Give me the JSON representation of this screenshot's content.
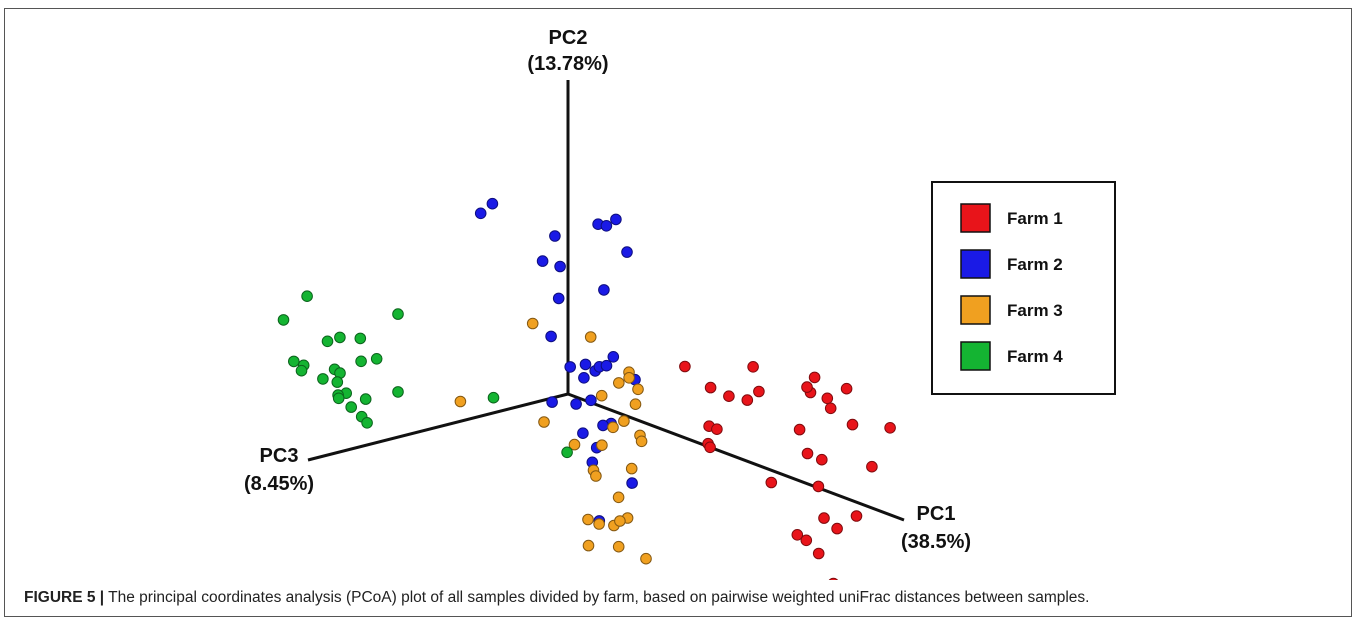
{
  "caption": {
    "label": "FIGURE 5 |",
    "text": " The principal coordinates analysis (PCoA) plot of all samples divided by farm, based on pairwise weighted uniFrac distances between samples."
  },
  "chart_data": {
    "type": "scatter",
    "projection": "3d",
    "title": "",
    "axes": [
      {
        "name": "PC1",
        "variance": "(38.5%)"
      },
      {
        "name": "PC2",
        "variance": "(13.78%)"
      },
      {
        "name": "PC3",
        "variance": "(8.45%)"
      }
    ],
    "legend_placement": "right",
    "grid": false,
    "series": [
      {
        "name": "Farm 1",
        "color": "#e8141a",
        "points": [
          [
            6.75,
            3.0,
            0.97
          ],
          [
            7.58,
            2.97,
            1.05
          ],
          [
            8.42,
            4.47,
            0.85
          ],
          [
            5.33,
            3.26,
            0.55
          ],
          [
            6.42,
            1.2,
            0.65
          ],
          [
            6.33,
            0.94,
            0.15
          ],
          [
            5.92,
            0.17,
            0.1
          ],
          [
            6.08,
            0.1,
            0.19
          ],
          [
            7.83,
            3.01,
            -0.15
          ],
          [
            9.83,
            3.68,
            -0.33
          ],
          [
            8.5,
            3.11,
            -1.75
          ],
          [
            9.5,
            4.06,
            -0.93
          ],
          [
            10.67,
            3.79,
            -0.16
          ],
          [
            11.25,
            4.35,
            -0.43
          ],
          [
            9.0,
            1.73,
            -0.78
          ],
          [
            9.42,
            1.65,
            -2.92
          ],
          [
            7.33,
            2.46,
            -0.17
          ],
          [
            10.58,
            3.28,
            -0.44
          ],
          [
            12.42,
            3.0,
            -1.2
          ],
          [
            8.92,
            0.6,
            -1.27
          ],
          [
            10.0,
            0.87,
            -0.69
          ],
          [
            10.33,
            0.26,
            -2.8
          ],
          [
            8.17,
            -0.7,
            -0.36
          ],
          [
            9.5,
            -0.52,
            -1.12
          ],
          [
            9.5,
            -1.9,
            -1.4
          ],
          [
            10.17,
            -2.9,
            -0.33
          ],
          [
            7.83,
            -3.36,
            -2.07
          ],
          [
            8.17,
            -3.47,
            -2.11
          ],
          [
            9.92,
            -2.21,
            -1.55
          ],
          [
            10.08,
            -1.79,
            -2.33
          ],
          [
            10.5,
            -4.1,
            -0.67
          ]
        ]
      },
      {
        "name": "Farm 2",
        "color": "#1a1ae6",
        "points": [
          [
            -0.25,
            8.56,
            3.48
          ],
          [
            -0.83,
            7.92,
            3.37
          ],
          [
            1.42,
            7.65,
            0.2
          ],
          [
            1.08,
            7.45,
            -1.1
          ],
          [
            1.25,
            7.39,
            -0.42
          ],
          [
            2.33,
            6.85,
            3.19
          ],
          [
            2.67,
            5.75,
            3.67
          ],
          [
            2.5,
            6.86,
            0.05
          ],
          [
            -0.08,
            6.67,
            0.56
          ],
          [
            0.75,
            6.27,
            2.17
          ],
          [
            2.17,
            5.32,
            0.81
          ],
          [
            2.92,
            4.4,
            4.35
          ],
          [
            2.0,
            1.93,
            1.04
          ],
          [
            1.75,
            1.9,
            0.53
          ],
          [
            1.33,
            1.34,
            0.8
          ],
          [
            0.42,
            0.09,
            1.3
          ],
          [
            1.92,
            0.7,
            1.9
          ],
          [
            3.17,
            3.06,
            1.54
          ],
          [
            1.17,
            1.51,
            -0.52
          ],
          [
            2.67,
            2.72,
            2.33
          ],
          [
            2.5,
            2.67,
            2.89
          ],
          [
            2.42,
            1.01,
            1.76
          ],
          [
            2.5,
            1.46,
            -0.35
          ],
          [
            2.83,
            0.09,
            1.24
          ],
          [
            2.17,
            -1.18,
            1.17
          ],
          [
            3.58,
            0.45,
            3.55
          ],
          [
            2.5,
            -0.11,
            1.25
          ],
          [
            2.08,
            -1.8,
            1.28
          ],
          [
            2.67,
            -2.71,
            0.0
          ],
          [
            2.42,
            -4.1,
            1.34
          ]
        ]
      },
      {
        "name": "Farm 3",
        "color": "#f0a020",
        "points": [
          [
            3.5,
            2.46,
            1.15
          ],
          [
            3.92,
            2.49,
            1.65
          ],
          [
            2.75,
            1.65,
            0.76
          ],
          [
            -1.08,
            2.63,
            0.47
          ],
          [
            3.0,
            1.34,
            0.1
          ],
          [
            3.92,
            1.32,
            1.33
          ],
          [
            2.25,
            -0.45,
            0.45
          ],
          [
            1.92,
            -0.51,
            -0.49
          ],
          [
            3.0,
            -0.6,
            0.0
          ],
          [
            3.5,
            -0.55,
            0.52
          ],
          [
            -1.0,
            -1.54,
            0.0
          ],
          [
            3.17,
            -1.79,
            0.62
          ],
          [
            -4.25,
            -1.85,
            0.28
          ],
          [
            1.67,
            -2.4,
            0.73
          ],
          [
            2.5,
            -3.27,
            0.47
          ],
          [
            3.5,
            -3.6,
            1.22
          ],
          [
            1.5,
            -4.5,
            0.8
          ],
          [
            1.92,
            -4.54,
            0.75
          ],
          [
            2.33,
            -4.5,
            0.5
          ],
          [
            1.83,
            -4.69,
            -0.4
          ],
          [
            1.17,
            -5.8,
            0.38
          ],
          [
            3.0,
            -5.8,
            -0.3
          ],
          [
            2.67,
            -5.22,
            0.67
          ],
          [
            0.92,
            -1.6,
            0.78
          ],
          [
            2.83,
            -1.94,
            2.0
          ],
          [
            3.17,
            1.56,
            2.12
          ],
          [
            0.58,
            2.5,
            -0.44
          ],
          [
            2.33,
            -1.03,
            1.1
          ]
        ]
      },
      {
        "name": "Farm 4",
        "color": "#14b432",
        "points": [
          [
            -3.25,
            3.07,
            4.6
          ],
          [
            -5.17,
            1.25,
            4.18
          ],
          [
            -4.25,
            -0.8,
            3.4
          ],
          [
            -8.42,
            1.53,
            2.94
          ],
          [
            -6.17,
            0.88,
            4.0
          ],
          [
            -5.42,
            0.13,
            3.84
          ],
          [
            -5.33,
            0.13,
            3.17
          ],
          [
            -7.58,
            -0.79,
            4.12
          ],
          [
            -8.08,
            1.0,
            4.53
          ],
          [
            -6.5,
            -0.6,
            3.87
          ],
          [
            -7.17,
            0.22,
            3.42
          ],
          [
            -6.5,
            -1.72,
            3.29
          ],
          [
            -7.17,
            -1.3,
            3.65
          ],
          [
            -7.0,
            -1.13,
            3.0
          ],
          [
            -6.08,
            -0.9,
            4.24
          ],
          [
            -5.83,
            -1.75,
            3.12
          ],
          [
            -8.5,
            -1.1,
            3.51
          ],
          [
            -8.67,
            -1.67,
            2.92
          ],
          [
            -7.92,
            -2.6,
            1.99
          ],
          [
            -7.33,
            -2.37,
            2.67
          ],
          [
            -6.5,
            -2.35,
            3.04
          ],
          [
            -5.83,
            -2.44,
            3.32
          ],
          [
            -5.33,
            -2.44,
            3.65
          ],
          [
            -1.92,
            -0.58,
            1.42
          ],
          [
            0.83,
            -1.9,
            1.04
          ]
        ]
      }
    ]
  }
}
